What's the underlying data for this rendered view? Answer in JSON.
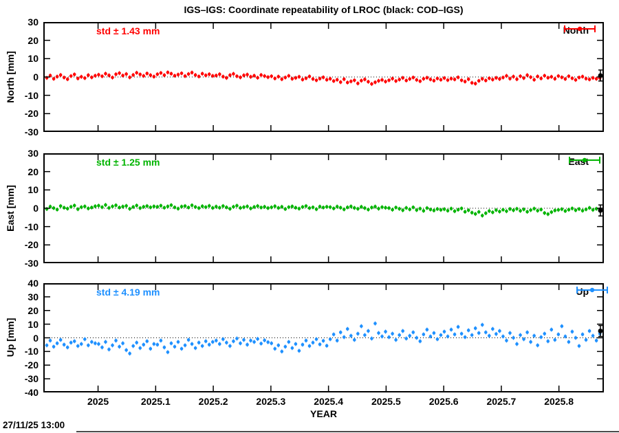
{
  "title": "IGS–IGS: Coordinate repeatability of LROC (black: COD–IGS)",
  "timestamp": "27/11/25 13:00",
  "x_axis": {
    "label": "YEAR",
    "lim": [
      2024.905,
      2025.878
    ],
    "ticks": [
      2025,
      2025.1,
      2025.2,
      2025.3,
      2025.4,
      2025.5,
      2025.6,
      2025.7,
      2025.8
    ],
    "tick_labels": [
      "2025",
      "2025.1",
      "2025.2",
      "2025.3",
      "2025.4",
      "2025.5",
      "2025.6",
      "2025.7",
      "2025.8"
    ]
  },
  "chart_data": [
    {
      "type": "scatter",
      "name": "North",
      "legend": "North",
      "ylabel": "North [mm]",
      "std_label": "std ± 1.43 mm",
      "color": "#ff0000",
      "cod_color": "#000000",
      "ylim": [
        -30,
        30
      ],
      "yticks": [
        30,
        20,
        10,
        0,
        -10,
        -20,
        -30
      ],
      "x_start": 2024.905,
      "x_step": 0.006,
      "values": [
        0.3,
        -0.5,
        0.8,
        -1.0,
        0.2,
        1.1,
        -0.3,
        -1.2,
        0.5,
        1.4,
        -0.8,
        0.1,
        -0.6,
        1.0,
        -0.2,
        0.7,
        1.2,
        0.4,
        1.8,
        0.9,
        -0.3,
        1.5,
        2.1,
        0.8,
        1.6,
        -0.2,
        1.1,
        2.3,
        1.4,
        0.6,
        1.9,
        1.0,
        0.2,
        1.5,
        2.2,
        1.0,
        2.5,
        1.8,
        0.7,
        1.3,
        2.0,
        0.5,
        1.6,
        2.4,
        1.1,
        0.3,
        1.8,
        0.9,
        1.5,
        0.6,
        0.8,
        1.5,
        0.2,
        -0.5,
        1.0,
        1.7,
        0.4,
        -0.2,
        0.9,
        1.3,
        0.1,
        0.7,
        -0.4,
        1.1,
        0.5,
        -0.1,
        0.4,
        -0.8,
        0.2,
        -1.2,
        -0.3,
        0.6,
        -1.0,
        -0.5,
        0.1,
        -1.4,
        -0.7,
        0.3,
        -1.1,
        -1.8,
        -0.9,
        -0.2,
        -1.5,
        -1.0,
        -2.2,
        -1.5,
        -2.8,
        -1.2,
        -3.0,
        -2.4,
        -1.8,
        -3.5,
        -2.0,
        -1.3,
        -2.6,
        -3.8,
        -2.9,
        -2.1,
        -1.6,
        -2.5,
        -1.8,
        -0.9,
        -2.2,
        -1.4,
        -0.5,
        -1.9,
        -1.1,
        -0.3,
        -1.6,
        -2.3,
        -1.0,
        -0.4,
        -1.3,
        -2.0,
        -0.8,
        -1.5,
        -0.6,
        -1.7,
        -0.9,
        -1.3,
        -0.2,
        -1.8,
        -2.5,
        -1.2,
        -3.2,
        -3.6,
        -2.1,
        -1.0,
        -1.9,
        -0.7,
        -1.4,
        -0.5,
        -1.1,
        -0.3,
        0.6,
        -0.9,
        0.2,
        -1.2,
        0.4,
        -0.6,
        1.0,
        -0.1,
        -1.5,
        0.3,
        -0.8,
        0.7,
        -0.4,
        0.1,
        -1.0,
        0.5,
        -0.2,
        -1.1,
        0.4,
        -0.7,
        -1.6,
        -0.3,
        0.2,
        -0.9,
        -1.3,
        -0.5,
        -1.0,
        -0.6
      ],
      "cod_point": {
        "x": 2025.872,
        "y": 0.8
      }
    },
    {
      "type": "scatter",
      "name": "East",
      "legend": "East",
      "ylabel": "East [mm]",
      "std_label": "std ± 1.25 mm",
      "color": "#00b400",
      "cod_color": "#000000",
      "ylim": [
        -30,
        30
      ],
      "yticks": [
        30,
        20,
        10,
        0,
        -10,
        -20,
        -30
      ],
      "x_start": 2024.905,
      "x_step": 0.006,
      "values": [
        0.5,
        -0.4,
        0.9,
        0.1,
        -0.7,
        1.2,
        0.3,
        -0.2,
        0.8,
        1.5,
        -0.5,
        0.6,
        1.0,
        -0.1,
        0.4,
        1.1,
        1.4,
        0.6,
        1.8,
        0.2,
        1.0,
        1.6,
        0.4,
        0.9,
        1.3,
        -0.3,
        0.7,
        1.5,
        0.1,
        0.8,
        1.2,
        0.5,
        1.0,
        0.8,
        1.4,
        0.3,
        1.0,
        1.7,
        0.5,
        -0.2,
        0.9,
        1.2,
        0.4,
        1.6,
        0.7,
        0.1,
        1.1,
        0.6,
        1.3,
        0.2,
        0.9,
        0.3,
        1.2,
        0.5,
        -0.3,
        0.8,
        1.4,
        0.2,
        0.6,
        1.0,
        -0.1,
        0.7,
        1.2,
        0.4,
        0.8,
        0.1,
        0.5,
        1.1,
        0.2,
        0.8,
        -0.4,
        0.6,
        1.0,
        0.3,
        -0.2,
        0.7,
        1.2,
        0.1,
        0.5,
        -0.5,
        0.9,
        0.4,
        0.8,
        0.6,
        -0.1,
        0.9,
        0.3,
        -0.6,
        0.5,
        1.0,
        0.2,
        -0.3,
        0.8,
        0.1,
        -0.7,
        0.4,
        0.9,
        -0.2,
        0.6,
        0.3,
        0.1,
        -0.8,
        0.4,
        -0.3,
        -1.1,
        0.2,
        -0.6,
        0.5,
        -1.0,
        -0.2,
        -1.4,
        0.1,
        -0.7,
        -1.2,
        -0.4,
        -0.9,
        -0.5,
        -1.3,
        -0.2,
        -1.6,
        -0.8,
        -0.1,
        -1.9,
        -1.1,
        -2.4,
        -3.1,
        -2.0,
        -4.0,
        -2.7,
        -1.5,
        -2.2,
        -1.0,
        -1.8,
        -0.8,
        -1.6,
        -0.4,
        -1.1,
        -0.3,
        -1.4,
        -0.6,
        -1.9,
        -1.0,
        -0.2,
        -1.3,
        -0.7,
        -2.6,
        -3.2,
        -2.1,
        -1.2,
        -0.9,
        -0.5,
        -1.5,
        -0.8,
        -0.1,
        -1.1,
        -0.4,
        -1.3,
        -0.6,
        0.2,
        -0.9,
        -0.3,
        -0.7
      ],
      "cod_point": {
        "x": 2025.872,
        "y": -1.2
      }
    },
    {
      "type": "scatter",
      "name": "Up",
      "legend": "Up",
      "ylabel": "Up [mm]",
      "std_label": "std ± 4.19 mm",
      "color": "#1e90ff",
      "cod_color": "#000000",
      "ylim": [
        -40,
        40
      ],
      "yticks": [
        40,
        30,
        20,
        10,
        0,
        -10,
        -20,
        -30,
        -40
      ],
      "x_start": 2024.905,
      "x_step": 0.006,
      "values": [
        -3,
        -5.5,
        -2,
        -6.5,
        -4,
        -1.5,
        -5,
        -7,
        -3.5,
        -2.5,
        -6,
        -4.5,
        -1,
        -5.5,
        -3,
        -4,
        -4.5,
        -7,
        -3,
        -8.5,
        -5.5,
        -2,
        -6.5,
        -4,
        -9,
        -11.5,
        -6,
        -3.5,
        -7.5,
        -5,
        -2.5,
        -8,
        -4.5,
        -5,
        -2,
        -7,
        -10.5,
        -4,
        -6.5,
        -3,
        -8,
        -5.5,
        -1.5,
        -4.5,
        -7.5,
        -3.5,
        -6,
        -2.5,
        -5,
        -3,
        -2,
        -4.5,
        -1,
        -3.5,
        -6,
        -2.5,
        -0.5,
        -4,
        -1.5,
        -5,
        -2,
        -3,
        -0.8,
        -4.2,
        -1.8,
        -3.2,
        -4,
        -8,
        -5.5,
        -10,
        -6.5,
        -3,
        -7.5,
        -4.5,
        -9.5,
        -5,
        -2,
        -6,
        -3.5,
        -1,
        -4.8,
        -2.2,
        -5.8,
        -1,
        2.5,
        -2,
        4,
        0.5,
        6.5,
        1.5,
        -1.5,
        3,
        8.5,
        2,
        5,
        -0.5,
        10.5,
        3.5,
        1,
        4.5,
        0.5,
        3,
        -1.5,
        2,
        5,
        -0.5,
        1.5,
        4,
        0,
        -2.5,
        2.5,
        6,
        1,
        3.5,
        -1,
        2,
        4.5,
        1,
        6,
        2.5,
        8,
        3,
        0.5,
        5.5,
        2,
        7,
        3.5,
        9.5,
        4,
        1.5,
        6.5,
        2.8,
        5,
        1,
        -2,
        3.5,
        0,
        -4.5,
        2,
        -1,
        4,
        -3,
        1.5,
        -5.5,
        0.5,
        3,
        -2.5,
        6,
        -1.5,
        2.5,
        8.5,
        1,
        -3,
        4.5,
        0,
        -6,
        2.5,
        -1.5,
        5,
        1.5,
        -2,
        3
      ],
      "cod_point": {
        "x": 2025.872,
        "y": 5.0
      }
    }
  ]
}
